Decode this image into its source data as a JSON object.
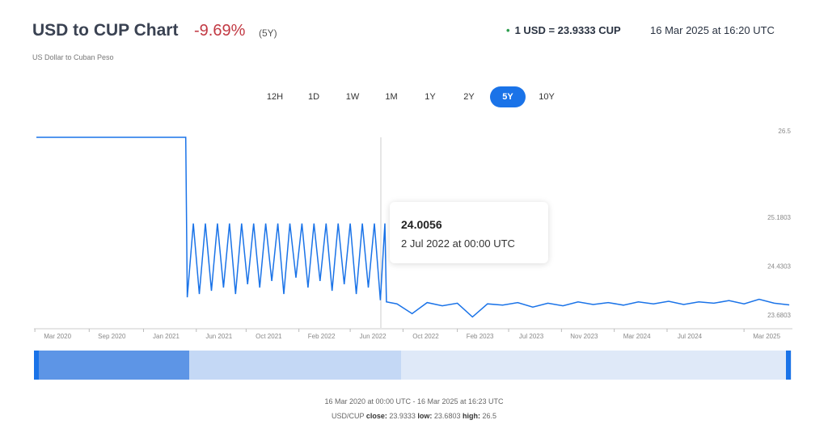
{
  "header": {
    "title": "USD to CUP Chart",
    "change": "-9.69%",
    "period": "(5Y)",
    "subtitle": "US Dollar to Cuban Peso",
    "rate": "1 USD = 23.9333 CUP",
    "rate_time": "16 Mar 2025 at 16:20 UTC"
  },
  "buttons": [
    "12H",
    "1D",
    "1W",
    "1M",
    "1Y",
    "2Y",
    "5Y",
    "10Y"
  ],
  "active_button": "5Y",
  "tooltip": {
    "value": "24.0056",
    "date": "2 Jul 2022 at 00:00 UTC"
  },
  "footer": {
    "range": "16 Mar 2020 at 00:00 UTC - 16 Mar 2025 at 16:23 UTC",
    "pair": "USD/CUP",
    "close_label": "close:",
    "close": "23.9333",
    "low_label": "low:",
    "low": "23.6803",
    "high_label": "high:",
    "high": "26.5"
  },
  "chart_data": {
    "type": "line",
    "color": "#1a73e8",
    "x": [
      2020.21,
      2020.5,
      2020.75,
      2021.0,
      2021.2,
      2021.21,
      2021.25,
      2021.29,
      2021.33,
      2021.37,
      2021.41,
      2021.45,
      2021.49,
      2021.53,
      2021.57,
      2021.61,
      2021.65,
      2021.69,
      2021.73,
      2021.77,
      2021.81,
      2021.85,
      2021.89,
      2021.93,
      2021.97,
      2022.01,
      2022.05,
      2022.09,
      2022.13,
      2022.17,
      2022.21,
      2022.25,
      2022.29,
      2022.33,
      2022.37,
      2022.41,
      2022.45,
      2022.49,
      2022.52,
      2022.53,
      2022.6,
      2022.7,
      2022.8,
      2022.9,
      2023.0,
      2023.1,
      2023.2,
      2023.3,
      2023.4,
      2023.5,
      2023.6,
      2023.7,
      2023.8,
      2023.9,
      2024.0,
      2024.1,
      2024.2,
      2024.3,
      2024.4,
      2024.5,
      2024.6,
      2024.7,
      2024.8,
      2024.9,
      2025.0,
      2025.1,
      2025.2
    ],
    "values": [
      26.5,
      26.5,
      26.5,
      26.5,
      26.5,
      24.05,
      25.18,
      24.1,
      25.18,
      24.15,
      25.18,
      24.2,
      25.18,
      24.1,
      25.18,
      24.25,
      25.18,
      24.2,
      25.18,
      24.3,
      25.18,
      24.1,
      25.18,
      24.35,
      25.18,
      24.2,
      25.18,
      24.3,
      25.18,
      24.15,
      25.18,
      24.25,
      25.18,
      24.1,
      25.18,
      24.2,
      25.18,
      24.0056,
      25.18,
      23.98,
      23.95,
      23.8,
      23.97,
      23.92,
      23.96,
      23.75,
      23.95,
      23.93,
      23.97,
      23.9,
      23.96,
      23.92,
      23.98,
      23.94,
      23.97,
      23.93,
      23.98,
      23.95,
      23.99,
      23.94,
      23.98,
      23.96,
      24.0,
      23.95,
      24.02,
      23.96,
      23.9333
    ],
    "xlim": [
      2020.21,
      2025.21
    ],
    "ylim": [
      23.6803,
      26.5
    ],
    "yticks": [
      26.5,
      25.1803,
      24.4303,
      23.6803
    ],
    "xticks": [
      {
        "value": 2020.35,
        "label": "Mar 2020"
      },
      {
        "value": 2020.71,
        "label": "Sep 2020"
      },
      {
        "value": 2021.07,
        "label": "Jan 2021"
      },
      {
        "value": 2021.42,
        "label": "Jun 2021"
      },
      {
        "value": 2021.75,
        "label": "Oct 2021"
      },
      {
        "value": 2022.1,
        "label": "Feb 2022"
      },
      {
        "value": 2022.44,
        "label": "Jun 2022"
      },
      {
        "value": 2022.79,
        "label": "Oct 2022"
      },
      {
        "value": 2023.15,
        "label": "Feb 2023"
      },
      {
        "value": 2023.49,
        "label": "Jul 2023"
      },
      {
        "value": 2023.84,
        "label": "Nov 2023"
      },
      {
        "value": 2024.19,
        "label": "Mar 2024"
      },
      {
        "value": 2024.54,
        "label": "Jul 2024"
      },
      {
        "value": 2025.05,
        "label": "Mar 2025"
      }
    ],
    "grid": false
  }
}
